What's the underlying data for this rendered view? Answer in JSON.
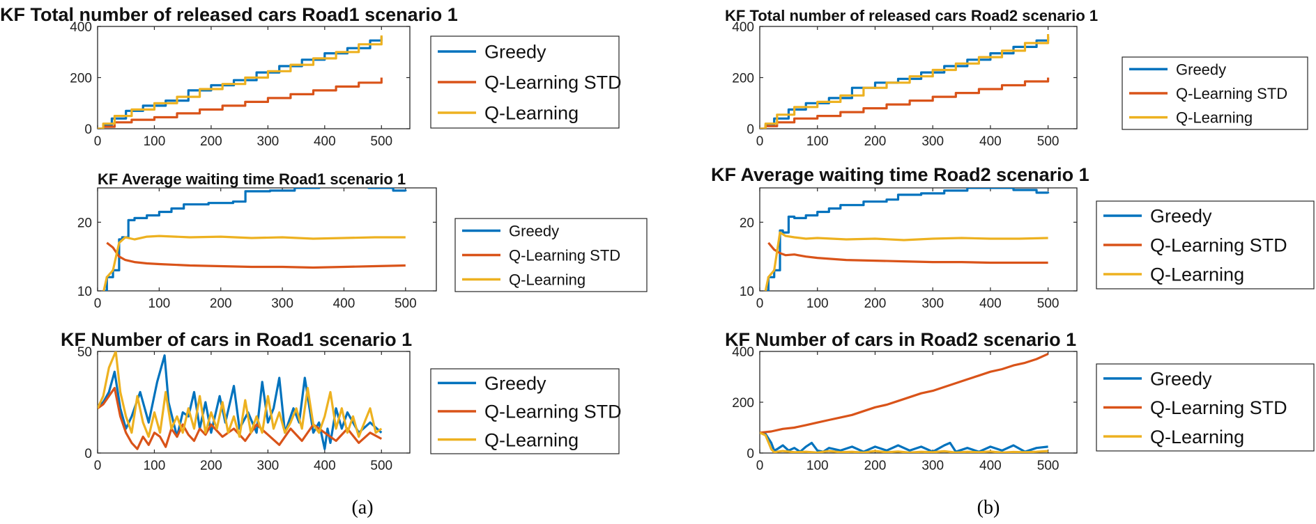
{
  "colors": {
    "Greedy": "#0072BD",
    "Q-Learning STD": "#D95319",
    "Q-Learning": "#EDB120"
  },
  "captions": [
    "(a)",
    "(b)"
  ],
  "chart_data": [
    {
      "id": "a1",
      "type": "line",
      "title": "KF Total number of released cars Road1 scenario 1",
      "xlabel": "",
      "ylabel": "",
      "xlim": [
        0,
        550
      ],
      "ylim": [
        0,
        400
      ],
      "xticks": [
        0,
        100,
        200,
        300,
        400,
        500
      ],
      "yticks": [
        0,
        200,
        400
      ],
      "legend": "right",
      "series": [
        {
          "name": "Greedy",
          "style": "staircase",
          "x": [
            0,
            10,
            25,
            50,
            80,
            120,
            160,
            200,
            240,
            280,
            320,
            360,
            400,
            440,
            480,
            500
          ],
          "y": [
            0,
            15,
            40,
            70,
            90,
            110,
            150,
            170,
            190,
            220,
            245,
            270,
            295,
            315,
            345,
            360
          ]
        },
        {
          "name": "Q-Learning STD",
          "style": "staircase",
          "x": [
            0,
            10,
            30,
            60,
            100,
            140,
            180,
            220,
            260,
            300,
            340,
            380,
            420,
            460,
            500
          ],
          "y": [
            0,
            8,
            25,
            35,
            45,
            60,
            75,
            90,
            105,
            120,
            135,
            150,
            165,
            180,
            200
          ]
        },
        {
          "name": "Q-Learning",
          "style": "staircase",
          "x": [
            0,
            10,
            30,
            60,
            100,
            140,
            180,
            220,
            260,
            300,
            340,
            380,
            420,
            460,
            500
          ],
          "y": [
            0,
            20,
            50,
            75,
            100,
            125,
            155,
            175,
            200,
            225,
            250,
            275,
            300,
            330,
            365
          ]
        }
      ]
    },
    {
      "id": "b1",
      "type": "line",
      "title": "KF Total number of released cars Road2 scenario 1",
      "xlabel": "",
      "ylabel": "",
      "xlim": [
        0,
        550
      ],
      "ylim": [
        0,
        400
      ],
      "xticks": [
        0,
        100,
        200,
        300,
        400,
        500
      ],
      "yticks": [
        0,
        200,
        400
      ],
      "legend": "right",
      "series": [
        {
          "name": "Greedy",
          "style": "staircase",
          "x": [
            0,
            10,
            25,
            50,
            80,
            120,
            160,
            200,
            240,
            280,
            320,
            360,
            400,
            440,
            480,
            500
          ],
          "y": [
            0,
            15,
            40,
            75,
            100,
            120,
            160,
            180,
            195,
            220,
            245,
            270,
            295,
            320,
            345,
            360
          ]
        },
        {
          "name": "Q-Learning STD",
          "style": "staircase",
          "x": [
            0,
            10,
            30,
            60,
            100,
            140,
            180,
            220,
            260,
            300,
            340,
            380,
            420,
            460,
            500
          ],
          "y": [
            0,
            10,
            25,
            40,
            50,
            65,
            80,
            95,
            110,
            125,
            140,
            155,
            170,
            185,
            200
          ]
        },
        {
          "name": "Q-Learning",
          "style": "staircase",
          "x": [
            0,
            10,
            30,
            60,
            100,
            140,
            180,
            220,
            260,
            300,
            340,
            380,
            420,
            460,
            500
          ],
          "y": [
            0,
            20,
            55,
            85,
            105,
            130,
            160,
            180,
            205,
            230,
            255,
            280,
            305,
            335,
            370
          ]
        }
      ]
    },
    {
      "id": "a2",
      "type": "line",
      "title": "KF Average waiting time Road1 scenario 1",
      "xlabel": "",
      "ylabel": "",
      "xlim": [
        0,
        550
      ],
      "ylim": [
        10,
        25
      ],
      "xticks": [
        0,
        100,
        200,
        300,
        400,
        500
      ],
      "yticks": [
        10,
        20
      ],
      "legend": "right",
      "series": [
        {
          "name": "Greedy",
          "style": "staircase",
          "x": [
            10,
            15,
            25,
            35,
            40,
            50,
            60,
            80,
            100,
            120,
            140,
            180,
            220,
            240,
            280,
            320,
            360,
            400,
            440,
            480,
            500
          ],
          "y": [
            10,
            12,
            13,
            17.5,
            17.8,
            20.3,
            20.6,
            21,
            21.5,
            22,
            22.6,
            22.8,
            23,
            24.5,
            24.6,
            25,
            25.2,
            25.3,
            25,
            24.6,
            24.5
          ]
        },
        {
          "name": "Q-Learning STD",
          "style": "line",
          "x": [
            15,
            25,
            35,
            45,
            60,
            80,
            100,
            150,
            200,
            250,
            300,
            350,
            400,
            450,
            500
          ],
          "y": [
            17,
            16.3,
            15,
            14.5,
            14.2,
            14,
            13.9,
            13.7,
            13.6,
            13.5,
            13.5,
            13.4,
            13.5,
            13.6,
            13.7
          ]
        },
        {
          "name": "Q-Learning",
          "style": "line",
          "x": [
            10,
            15,
            25,
            35,
            45,
            60,
            80,
            100,
            150,
            200,
            250,
            300,
            350,
            400,
            450,
            500
          ],
          "y": [
            10,
            12,
            13,
            17,
            17.8,
            17.5,
            17.9,
            18,
            17.8,
            17.9,
            17.7,
            17.8,
            17.6,
            17.7,
            17.8,
            17.8
          ]
        }
      ]
    },
    {
      "id": "b2",
      "type": "line",
      "title": "KF Average waiting time Road2 scenario 1",
      "xlabel": "",
      "ylabel": "",
      "xlim": [
        0,
        550
      ],
      "ylim": [
        10,
        25
      ],
      "xticks": [
        0,
        100,
        200,
        300,
        400,
        500
      ],
      "yticks": [
        10,
        20
      ],
      "legend": "right",
      "series": [
        {
          "name": "Greedy",
          "style": "staircase",
          "x": [
            10,
            15,
            25,
            35,
            40,
            50,
            60,
            80,
            100,
            120,
            140,
            180,
            220,
            240,
            280,
            320,
            360,
            400,
            440,
            480,
            500
          ],
          "y": [
            10,
            12,
            13,
            18.8,
            18.5,
            20.8,
            20.6,
            21,
            21.5,
            22,
            22.5,
            23,
            23.3,
            24,
            24.2,
            24.6,
            25,
            25,
            24.7,
            24.3,
            24.2
          ]
        },
        {
          "name": "Q-Learning STD",
          "style": "line",
          "x": [
            15,
            25,
            35,
            45,
            60,
            80,
            100,
            150,
            200,
            250,
            300,
            350,
            400,
            450,
            500
          ],
          "y": [
            17,
            16,
            15.5,
            15.2,
            15.3,
            15,
            14.8,
            14.5,
            14.4,
            14.3,
            14.2,
            14.2,
            14.1,
            14.1,
            14.1
          ]
        },
        {
          "name": "Q-Learning",
          "style": "line",
          "x": [
            10,
            15,
            25,
            35,
            45,
            60,
            80,
            100,
            150,
            200,
            250,
            300,
            350,
            400,
            450,
            500
          ],
          "y": [
            10,
            12,
            13,
            18.5,
            18,
            17.8,
            17.6,
            17.7,
            17.5,
            17.6,
            17.4,
            17.6,
            17.7,
            17.6,
            17.6,
            17.7
          ]
        }
      ]
    },
    {
      "id": "a3",
      "type": "line",
      "title": "KF Number of cars in Road1 scenario 1",
      "xlabel": "",
      "ylabel": "",
      "xlim": [
        0,
        550
      ],
      "ylim": [
        0,
        50
      ],
      "xticks": [
        0,
        100,
        200,
        300,
        400,
        500
      ],
      "yticks": [
        0,
        50
      ],
      "legend": "right",
      "series": [
        {
          "name": "Greedy",
          "style": "line",
          "x": [
            0,
            10,
            20,
            30,
            40,
            50,
            60,
            75,
            90,
            105,
            118,
            125,
            140,
            150,
            160,
            170,
            180,
            190,
            200,
            215,
            225,
            240,
            250,
            265,
            280,
            290,
            300,
            310,
            320,
            330,
            345,
            355,
            365,
            380,
            390,
            400,
            405,
            410,
            420,
            430,
            440,
            460,
            480,
            500
          ],
          "y": [
            23,
            25,
            30,
            40,
            22,
            12,
            18,
            30,
            15,
            35,
            48,
            25,
            8,
            20,
            18,
            30,
            12,
            25,
            10,
            28,
            15,
            33,
            12,
            20,
            10,
            35,
            15,
            22,
            37,
            10,
            22,
            15,
            37,
            10,
            15,
            2,
            12,
            5,
            22,
            12,
            20,
            10,
            15,
            10
          ]
        },
        {
          "name": "Q-Learning STD",
          "style": "line",
          "x": [
            0,
            10,
            20,
            30,
            40,
            50,
            60,
            70,
            80,
            90,
            100,
            110,
            120,
            130,
            140,
            150,
            160,
            170,
            180,
            190,
            200,
            220,
            240,
            260,
            280,
            300,
            320,
            340,
            360,
            380,
            400,
            420,
            440,
            460,
            480,
            500
          ],
          "y": [
            22,
            24,
            28,
            32,
            18,
            10,
            5,
            2,
            8,
            4,
            10,
            8,
            3,
            12,
            8,
            14,
            9,
            6,
            12,
            9,
            14,
            8,
            12,
            6,
            14,
            9,
            4,
            12,
            6,
            14,
            10,
            6,
            12,
            5,
            10,
            7
          ]
        },
        {
          "name": "Q-Learning",
          "style": "line",
          "x": [
            0,
            10,
            20,
            32,
            40,
            50,
            60,
            70,
            80,
            90,
            100,
            110,
            120,
            130,
            140,
            150,
            160,
            170,
            180,
            190,
            200,
            210,
            220,
            230,
            240,
            250,
            260,
            270,
            280,
            290,
            300,
            310,
            320,
            330,
            340,
            350,
            360,
            370,
            380,
            390,
            400,
            410,
            420,
            430,
            440,
            450,
            460,
            470,
            480,
            490,
            500
          ],
          "y": [
            22,
            28,
            42,
            50,
            30,
            18,
            10,
            28,
            15,
            8,
            20,
            10,
            30,
            12,
            18,
            10,
            22,
            12,
            28,
            10,
            20,
            12,
            25,
            10,
            18,
            8,
            26,
            10,
            18,
            10,
            28,
            12,
            20,
            10,
            15,
            22,
            12,
            32,
            14,
            10,
            18,
            30,
            12,
            22,
            10,
            18,
            8,
            15,
            22,
            10,
            12
          ]
        }
      ]
    },
    {
      "id": "b3",
      "type": "line",
      "title": "KF Number of cars in Road2 scenario 1",
      "xlabel": "",
      "ylabel": "",
      "xlim": [
        0,
        550
      ],
      "ylim": [
        0,
        400
      ],
      "xticks": [
        0,
        100,
        200,
        300,
        400,
        500
      ],
      "yticks": [
        0,
        200,
        400
      ],
      "legend": "right",
      "series": [
        {
          "name": "Greedy",
          "style": "line",
          "x": [
            0,
            10,
            20,
            25,
            30,
            40,
            50,
            60,
            70,
            80,
            90,
            100,
            110,
            120,
            140,
            160,
            180,
            200,
            220,
            240,
            260,
            280,
            300,
            320,
            330,
            340,
            360,
            380,
            400,
            420,
            440,
            460,
            480,
            500
          ],
          "y": [
            80,
            75,
            40,
            10,
            15,
            30,
            10,
            20,
            5,
            25,
            40,
            10,
            5,
            20,
            10,
            25,
            5,
            25,
            10,
            30,
            10,
            25,
            5,
            30,
            40,
            5,
            20,
            5,
            25,
            10,
            30,
            5,
            20,
            25
          ]
        },
        {
          "name": "Q-Learning STD",
          "style": "line",
          "x": [
            0,
            20,
            40,
            60,
            80,
            100,
            120,
            140,
            160,
            180,
            200,
            220,
            240,
            260,
            280,
            300,
            320,
            340,
            360,
            380,
            400,
            420,
            440,
            460,
            480,
            500
          ],
          "y": [
            80,
            85,
            95,
            100,
            110,
            120,
            130,
            140,
            150,
            165,
            180,
            190,
            205,
            220,
            235,
            245,
            260,
            275,
            290,
            305,
            320,
            330,
            345,
            355,
            370,
            390
          ]
        },
        {
          "name": "Q-Learning",
          "style": "line",
          "x": [
            0,
            10,
            20,
            25,
            30,
            40,
            60,
            80,
            100,
            120,
            140,
            160,
            180,
            200,
            220,
            240,
            260,
            280,
            300,
            320,
            340,
            360,
            380,
            400,
            420,
            440,
            460,
            480,
            500
          ],
          "y": [
            80,
            70,
            15,
            3,
            5,
            8,
            3,
            5,
            2,
            8,
            3,
            5,
            2,
            8,
            3,
            6,
            2,
            5,
            3,
            7,
            2,
            5,
            3,
            6,
            2,
            4,
            3,
            5,
            8
          ]
        }
      ]
    }
  ]
}
